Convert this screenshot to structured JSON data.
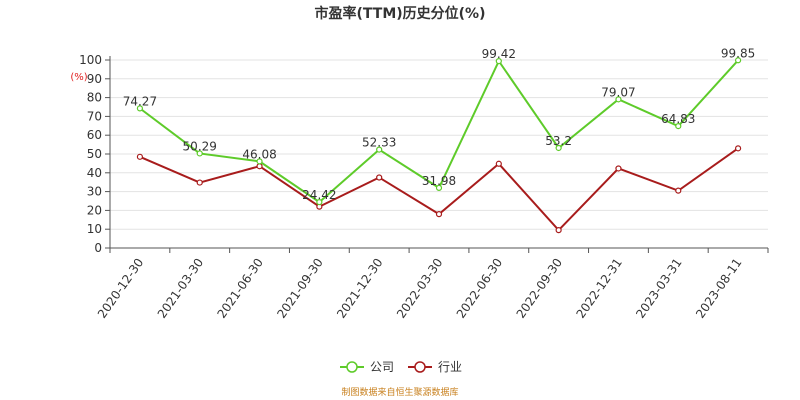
{
  "chart_data": {
    "type": "line",
    "title": "市盈率(TTM)历史分位(%)",
    "ylabel": "(%)",
    "xlabel": "",
    "ylim": [
      0,
      100
    ],
    "yticks": [
      "0",
      "10",
      "20",
      "30",
      "40",
      "50",
      "60",
      "70",
      "80",
      "90",
      "100"
    ],
    "categories": [
      "2020-12-30",
      "2021-03-30",
      "2021-06-30",
      "2021-09-30",
      "2021-12-30",
      "2022-03-30",
      "2022-06-30",
      "2022-09-30",
      "2022-12-31",
      "2023-03-31",
      "2023-08-11"
    ],
    "grid": true,
    "legend_position": "bottom-center",
    "series": [
      {
        "name": "公司",
        "color": "#5ecb2a",
        "values": [
          74.27,
          50.29,
          46.08,
          24.42,
          52.33,
          31.98,
          99.42,
          53.2,
          79.07,
          64.83,
          99.85
        ],
        "labels": [
          "74.27",
          "50.29",
          "46.08",
          "24.42",
          "52.33",
          "31.98",
          "99.42",
          "53.2",
          "79.07",
          "64.83",
          "99.85"
        ]
      },
      {
        "name": "行业",
        "color": "#a81c1c",
        "values": [
          48.5,
          34.8,
          43.5,
          22.0,
          37.5,
          18.0,
          44.8,
          9.5,
          42.3,
          30.5,
          53.0
        ],
        "labels": []
      }
    ],
    "source": "制图数据来自恒生聚源数据库"
  }
}
